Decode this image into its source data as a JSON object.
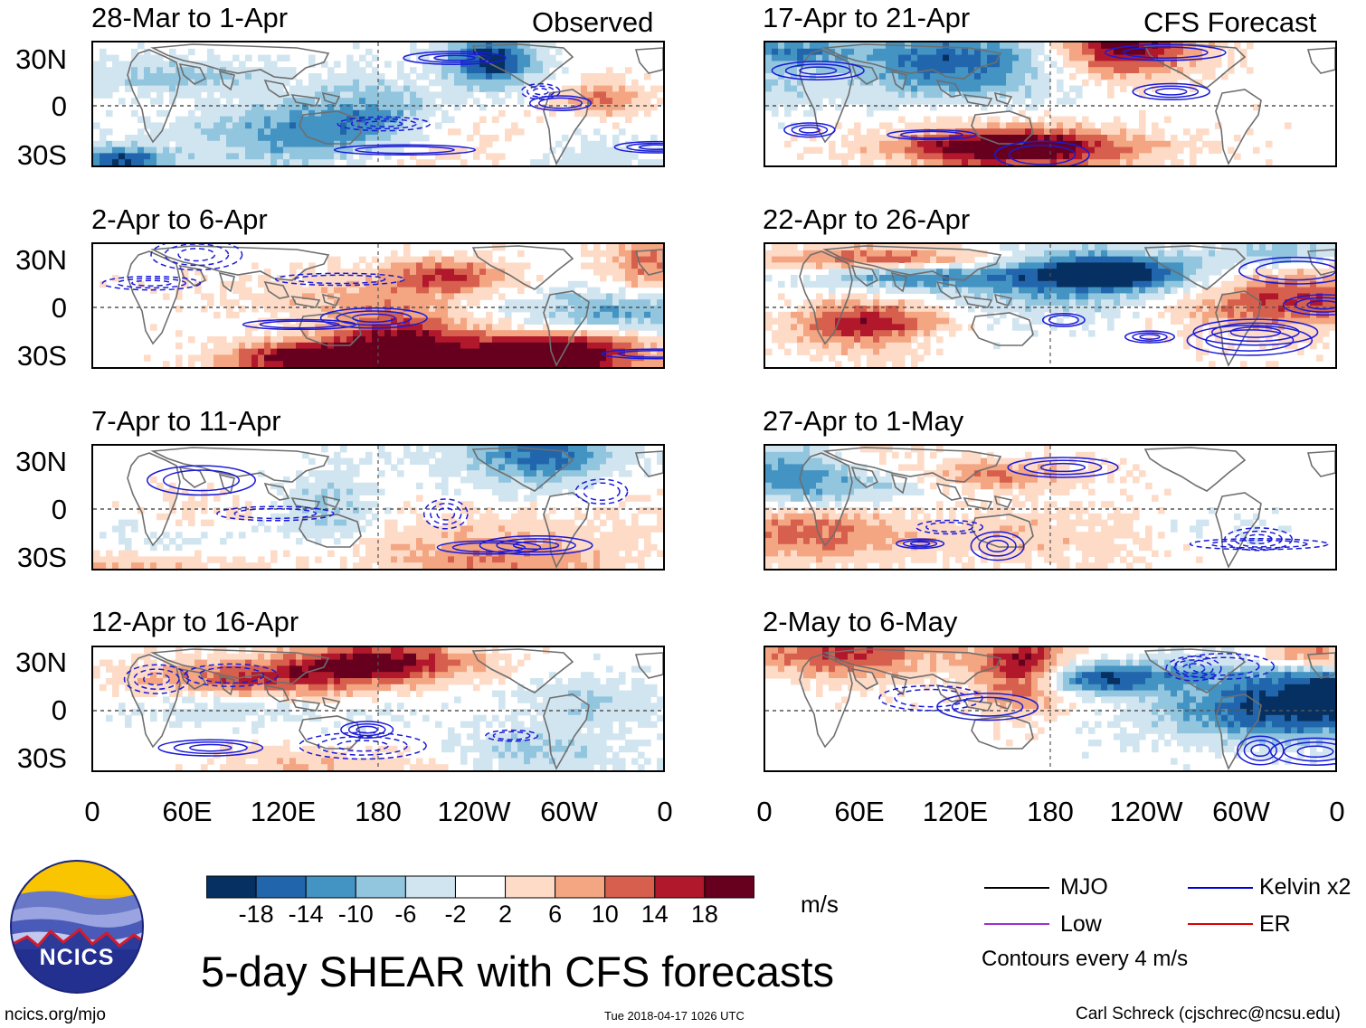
{
  "chart_data": {
    "type": "heatmap",
    "title": "5-day SHEAR with CFS forecasts",
    "units": "m/s",
    "column_headers": {
      "observed": "Observed",
      "forecast": "CFS Forecast"
    },
    "lat_ticks": [
      "30N",
      "0",
      "30S"
    ],
    "lon_ticks": [
      "0",
      "60E",
      "120E",
      "180",
      "120W",
      "60W",
      "0"
    ],
    "colorbar": {
      "ticks": [
        "-18",
        "-14",
        "-10",
        "-6",
        "-2",
        "2",
        "6",
        "10",
        "14",
        "18"
      ],
      "colors": [
        "#053061",
        "#2166ac",
        "#4393c3",
        "#92c5de",
        "#d1e5f0",
        "#ffffff",
        "#fddbc7",
        "#f4a582",
        "#d6604d",
        "#b2182b",
        "#67001f"
      ]
    },
    "panels": [
      {
        "id": "obs1",
        "title": "28-Mar to 1-Apr",
        "group": "Observed"
      },
      {
        "id": "obs2",
        "title": "2-Apr to 6-Apr",
        "group": "Observed"
      },
      {
        "id": "obs3",
        "title": "7-Apr to 11-Apr",
        "group": "Observed"
      },
      {
        "id": "obs4",
        "title": "12-Apr to 16-Apr",
        "group": "Observed"
      },
      {
        "id": "fc1",
        "title": "17-Apr to 21-Apr",
        "group": "CFS Forecast"
      },
      {
        "id": "fc2",
        "title": "22-Apr to 26-Apr",
        "group": "CFS Forecast"
      },
      {
        "id": "fc3",
        "title": "27-Apr to 1-May",
        "group": "CFS Forecast"
      },
      {
        "id": "fc4",
        "title": "2-May to 6-May",
        "group": "CFS Forecast"
      }
    ]
  },
  "legend": {
    "items": [
      {
        "label": "MJO",
        "color": "#000000"
      },
      {
        "label": "Kelvin x2",
        "color": "#0000dd"
      },
      {
        "label": "Low",
        "color": "#9933cc"
      },
      {
        "label": "ER",
        "color": "#dd0000"
      }
    ],
    "note": "Contours every 4 m/s"
  },
  "logo_text": "NCICS",
  "footer": {
    "left": "ncics.org/mjo",
    "timestamp": "Tue 2018-04-17 1026 UTC",
    "credit": "Carl Schreck (cjschrec@ncsu.edu)"
  }
}
